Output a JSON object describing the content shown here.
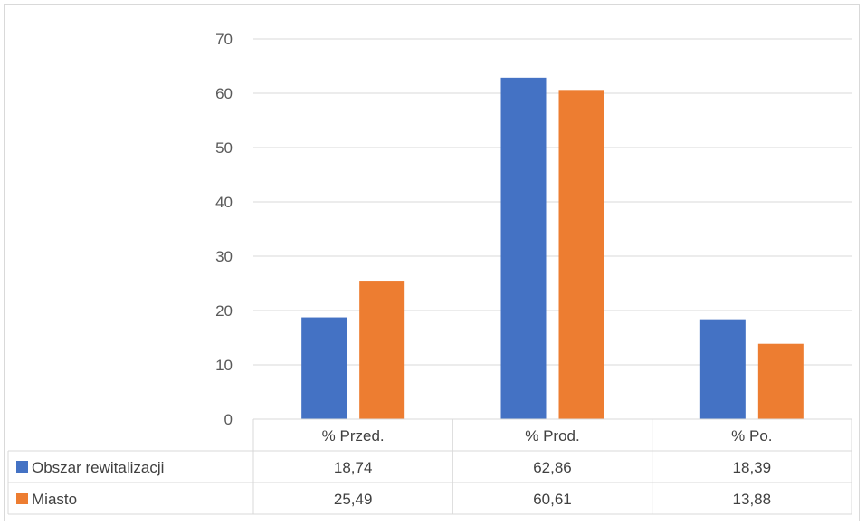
{
  "chart_data": {
    "type": "bar",
    "title": "",
    "xlabel": "",
    "ylabel": "",
    "categories": [
      "% Przed.",
      "% Prod.",
      "% Po."
    ],
    "series": [
      {
        "name": "Obszar rewitalizacji",
        "values": [
          18.74,
          62.86,
          18.39
        ],
        "labels": [
          "18,74",
          "62,86",
          "18,39"
        ],
        "color": "#4472C4"
      },
      {
        "name": "Miasto",
        "values": [
          25.49,
          60.61,
          13.88
        ],
        "labels": [
          "25,49",
          "60,61",
          "13,88"
        ],
        "color": "#ED7D31"
      }
    ],
    "ylim": [
      0,
      70
    ],
    "yticks": [
      0,
      10,
      20,
      30,
      40,
      50,
      60,
      70
    ],
    "grid": true,
    "legend": "data-table",
    "gridline_color": "#d9d9d9"
  }
}
